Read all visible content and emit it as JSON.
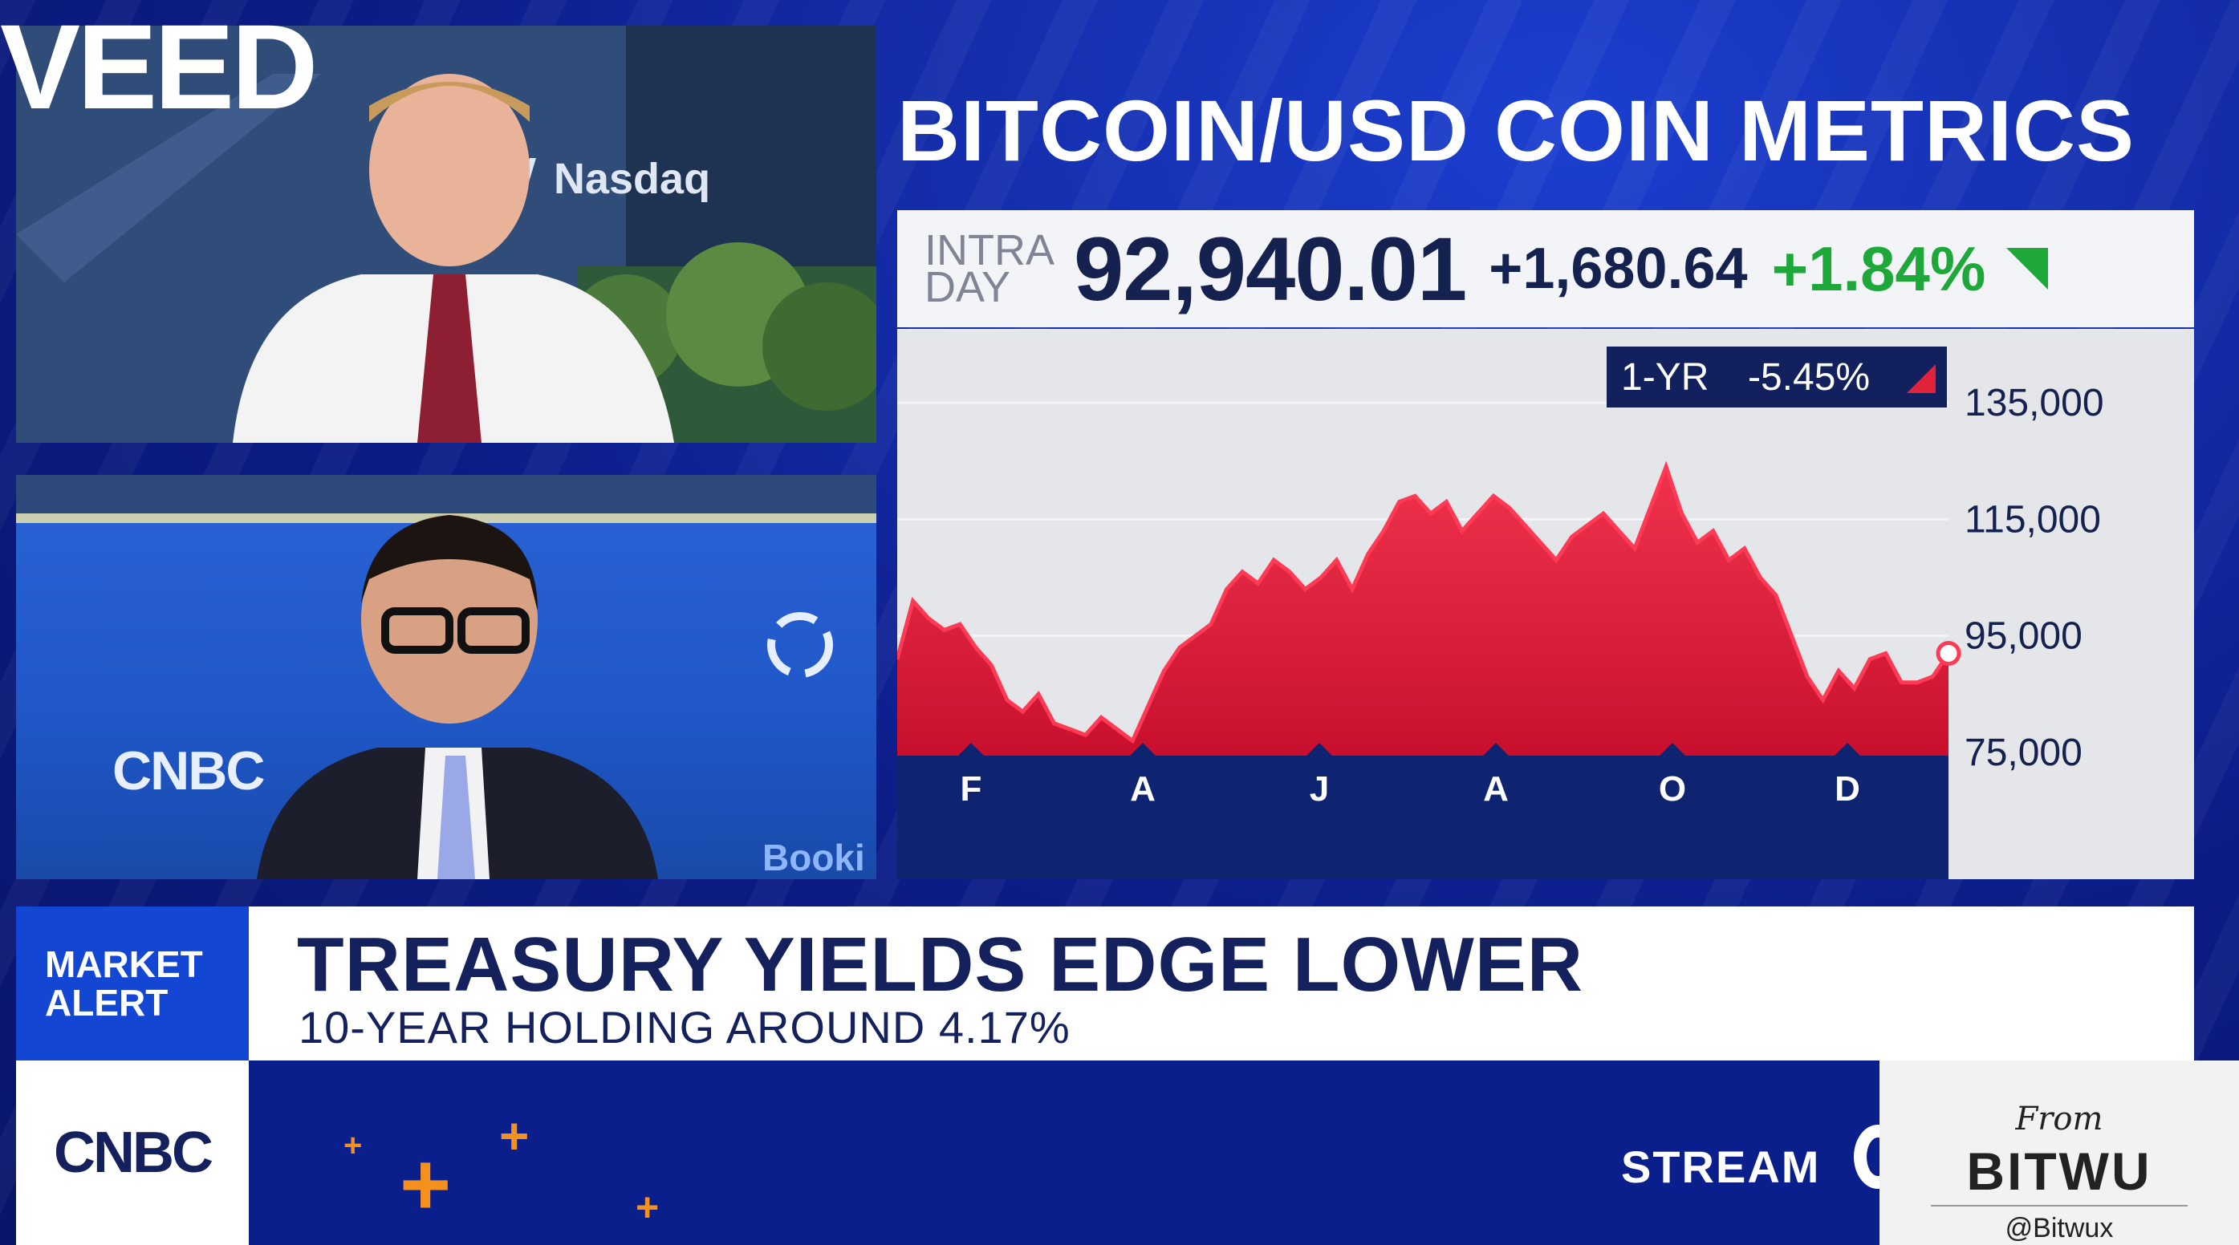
{
  "overlay": {
    "wordmark": "VEED"
  },
  "studio": {
    "top_feed": {
      "backdrop_text": "Nasdaq"
    },
    "bottom_feed": {
      "backdrop_text_left": "CNBC",
      "backdrop_text_right": "Booki"
    }
  },
  "panel": {
    "title": "BITCOIN/USD COIN METRICS",
    "intraday_label_line1": "INTRA",
    "intraday_label_line2": "DAY",
    "price": "92,940.01",
    "change": "+1,680.64",
    "change_pct": "+1.84%",
    "colors": {
      "up": "#1ea83a",
      "down": "#e0233a",
      "navy": "#15214f"
    }
  },
  "chart_data": {
    "type": "area",
    "badge": {
      "period": "1-YR",
      "change_pct": "-5.45%"
    },
    "x_tick_labels": [
      "F",
      "A",
      "J",
      "A",
      "O",
      "D"
    ],
    "y_tick_labels": [
      "135,000",
      "115,000",
      "95,000",
      "75,000"
    ],
    "ylim": [
      72000,
      140000
    ],
    "grid": true,
    "series": [
      {
        "values": [
          91000,
          101000,
          98000,
          96000,
          97000,
          93000,
          90000,
          84000,
          82000,
          85000,
          80000,
          79000,
          78000,
          81000,
          79000,
          77000,
          83000,
          89000,
          93000,
          95000,
          97000,
          103000,
          106000,
          104000,
          108000,
          106000,
          103000,
          105000,
          108000,
          103000,
          109000,
          113000,
          118000,
          119000,
          116000,
          118000,
          113000,
          116000,
          119000,
          117000,
          114000,
          111000,
          108000,
          112000,
          114000,
          116000,
          113000,
          110000,
          117000,
          124000,
          116000,
          111000,
          113000,
          108000,
          110000,
          105000,
          102000,
          95000,
          88000,
          84000,
          89000,
          86000,
          91000,
          92000,
          87000,
          87000,
          88000,
          92000
        ]
      }
    ]
  },
  "alert": {
    "tag_line1": "MARKET",
    "tag_line2": "ALERT",
    "headline": "TREASURY YIELDS EDGE LOWER",
    "subheadline": "10-YEAR HOLDING AROUND 4.17%"
  },
  "footer": {
    "network": "CNBC",
    "stream_text": "STREAM"
  },
  "watermark": {
    "from": "From",
    "name": "BITWU",
    "handle": "@Bitwux"
  }
}
